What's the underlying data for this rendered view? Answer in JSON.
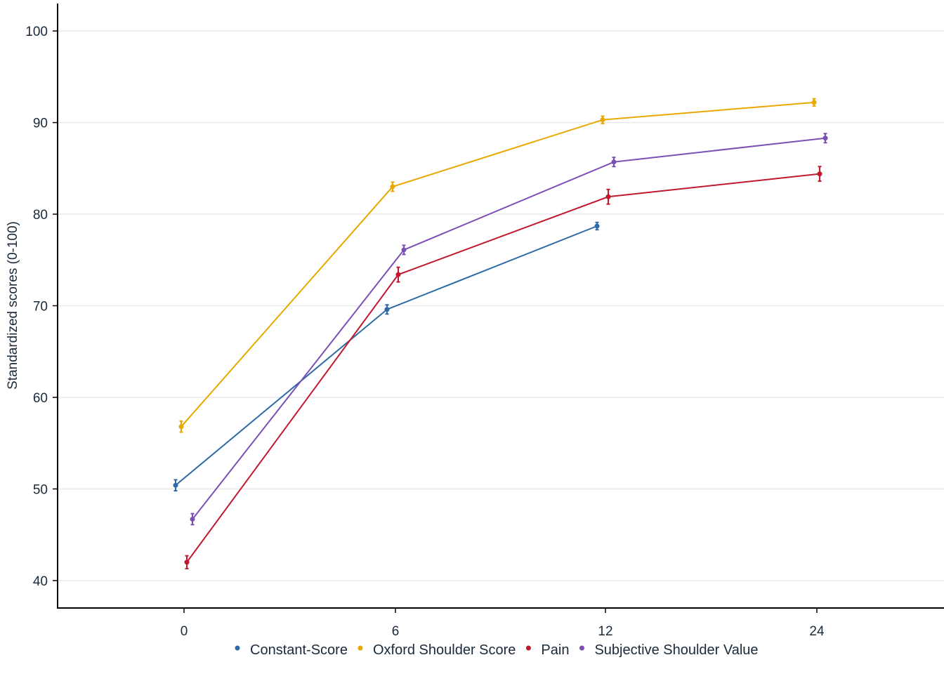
{
  "chart_data": {
    "type": "line",
    "title": "",
    "xlabel": "",
    "ylabel": "Standardized scores (0-100)",
    "x_categories": [
      "0",
      "6",
      "12",
      "24"
    ],
    "ylim": [
      37,
      103
    ],
    "y_ticks": [
      40,
      50,
      60,
      70,
      80,
      90,
      100
    ],
    "grid": true,
    "legend_position": "bottom",
    "series": [
      {
        "name": "Constant-Score",
        "color": "#2e6aa6",
        "points": [
          {
            "x": "0",
            "y": 50.4,
            "err": 0.6
          },
          {
            "x": "6",
            "y": 69.6,
            "err": 0.5
          },
          {
            "x": "12",
            "y": 78.7,
            "err": 0.4
          }
        ]
      },
      {
        "name": "Oxford Shoulder Score",
        "color": "#e8a800",
        "points": [
          {
            "x": "0",
            "y": 56.8,
            "err": 0.6
          },
          {
            "x": "6",
            "y": 83.0,
            "err": 0.5
          },
          {
            "x": "12",
            "y": 90.3,
            "err": 0.4
          },
          {
            "x": "24",
            "y": 92.2,
            "err": 0.4
          }
        ]
      },
      {
        "name": "Pain",
        "color": "#c0192e",
        "points": [
          {
            "x": "0",
            "y": 42.0,
            "err": 0.7
          },
          {
            "x": "6",
            "y": 73.4,
            "err": 0.8
          },
          {
            "x": "12",
            "y": 81.9,
            "err": 0.8
          },
          {
            "x": "24",
            "y": 84.4,
            "err": 0.8
          }
        ]
      },
      {
        "name": "Subjective Shoulder Value",
        "color": "#7b4fb5",
        "points": [
          {
            "x": "0",
            "y": 46.7,
            "err": 0.6
          },
          {
            "x": "6",
            "y": 76.1,
            "err": 0.5
          },
          {
            "x": "12",
            "y": 85.7,
            "err": 0.5
          },
          {
            "x": "24",
            "y": 88.3,
            "err": 0.5
          }
        ]
      }
    ]
  }
}
